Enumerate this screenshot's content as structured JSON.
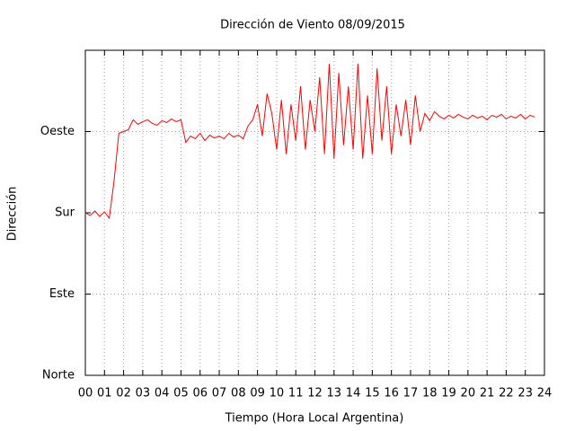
{
  "chart_data": {
    "type": "line",
    "title": "Dirección de Viento 08/09/2015",
    "xlabel": "Tiempo (Hora Local Argentina)",
    "ylabel": "Dirección",
    "color": "#ff0000",
    "grid": true,
    "xlim": [
      0,
      24
    ],
    "ylim": [
      0,
      360
    ],
    "xticks": [
      {
        "value": 0,
        "label": "00"
      },
      {
        "value": 1,
        "label": "01"
      },
      {
        "value": 2,
        "label": "02"
      },
      {
        "value": 3,
        "label": "03"
      },
      {
        "value": 4,
        "label": "04"
      },
      {
        "value": 5,
        "label": "05"
      },
      {
        "value": 6,
        "label": "06"
      },
      {
        "value": 7,
        "label": "07"
      },
      {
        "value": 8,
        "label": "08"
      },
      {
        "value": 9,
        "label": "09"
      },
      10,
      11,
      12,
      13,
      14,
      15,
      16,
      17,
      18,
      19,
      20,
      21,
      22,
      23,
      24
    ],
    "yticks": [
      {
        "value": 0,
        "label": "Norte"
      },
      {
        "value": 90,
        "label": "Este"
      },
      {
        "value": 180,
        "label": "Sur"
      },
      {
        "value": 270,
        "label": "Oeste"
      }
    ],
    "x": [
      0,
      0.25,
      0.5,
      0.75,
      1,
      1.25,
      1.5,
      1.75,
      2,
      2.25,
      2.5,
      2.75,
      3,
      3.25,
      3.5,
      3.75,
      4,
      4.25,
      4.5,
      4.75,
      5,
      5.25,
      5.5,
      5.75,
      6,
      6.25,
      6.5,
      6.75,
      7,
      7.25,
      7.5,
      7.75,
      8,
      8.25,
      8.5,
      8.75,
      9,
      9.25,
      9.5,
      9.75,
      10,
      10.25,
      10.5,
      10.75,
      11,
      11.25,
      11.5,
      11.75,
      12,
      12.25,
      12.5,
      12.75,
      13,
      13.25,
      13.5,
      13.75,
      14,
      14.25,
      14.5,
      14.75,
      15,
      15.25,
      15.5,
      15.75,
      16,
      16.25,
      16.5,
      16.75,
      17,
      17.25,
      17.5,
      17.75,
      18,
      18.25,
      18.5,
      18.75,
      19,
      19.25,
      19.5,
      19.75,
      20,
      20.25,
      20.5,
      20.75,
      21,
      21.25,
      21.5,
      21.75,
      22,
      22.25,
      22.5,
      22.75,
      23,
      23.25,
      23.5
    ],
    "values": [
      180,
      177,
      182,
      176,
      181,
      174,
      215,
      268,
      270,
      272,
      283,
      278,
      281,
      283,
      279,
      277,
      282,
      280,
      284,
      281,
      283,
      258,
      265,
      262,
      268,
      260,
      266,
      263,
      265,
      262,
      268,
      264,
      266,
      262,
      276,
      283,
      300,
      265,
      312,
      290,
      250,
      305,
      245,
      300,
      260,
      320,
      250,
      305,
      270,
      330,
      245,
      345,
      240,
      335,
      255,
      320,
      250,
      345,
      240,
      310,
      245,
      340,
      260,
      320,
      245,
      300,
      265,
      305,
      255,
      310,
      270,
      290,
      282,
      292,
      287,
      284,
      288,
      285,
      289,
      286,
      284,
      288,
      285,
      287,
      283,
      288,
      286,
      289,
      284,
      287,
      285,
      289,
      284,
      288,
      286
    ]
  }
}
